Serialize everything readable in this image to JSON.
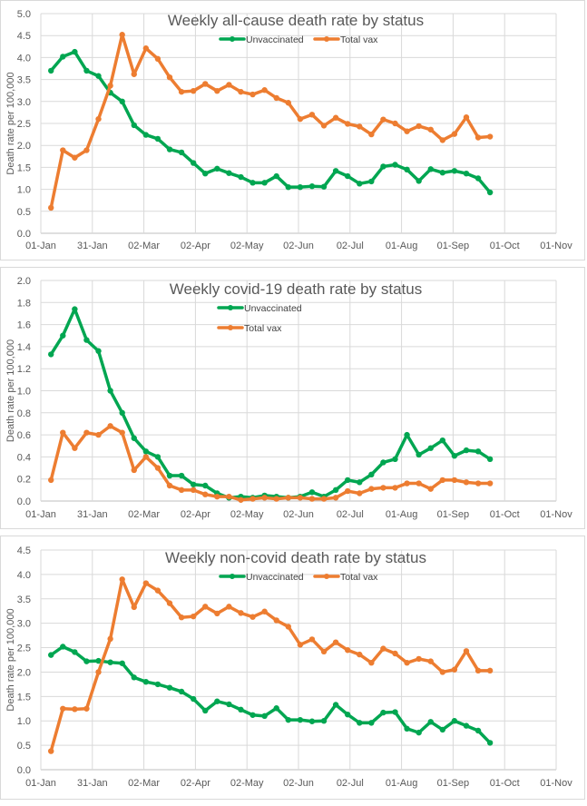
{
  "colors": {
    "unvaccinated": "#00A651",
    "total_vax": "#ED7D31"
  },
  "chart_data": [
    {
      "type": "line",
      "title": "Weekly all-cause death rate by status",
      "xlabel": "",
      "ylabel": "Death rate per 100,000",
      "ylim": [
        0,
        5.0
      ],
      "ytick_step": 0.5,
      "ytick_labels": [
        "0.0",
        "0.5",
        "1.0",
        "1.5",
        "2.0",
        "2.5",
        "3.0",
        "3.5",
        "4.0",
        "4.5",
        "5.0"
      ],
      "xtick_labels": [
        "01-Jan",
        "31-Jan",
        "02-Mar",
        "02-Apr",
        "02-May",
        "02-Jun",
        "02-Jul",
        "01-Aug",
        "01-Sep",
        "01-Oct",
        "01-Nov"
      ],
      "x_start_day": 6,
      "x_step_days": 7,
      "grid": true,
      "legend": {
        "placement": "top-center",
        "layout": "horizontal",
        "entries": [
          "Unvaccinated",
          "Total vax"
        ]
      },
      "series": [
        {
          "name": "Unvaccinated",
          "color_key": "unvaccinated",
          "values": [
            3.7,
            4.02,
            4.13,
            3.7,
            3.58,
            3.2,
            3.0,
            2.46,
            2.24,
            2.15,
            1.91,
            1.84,
            1.6,
            1.36,
            1.47,
            1.37,
            1.28,
            1.15,
            1.15,
            1.3,
            1.05,
            1.05,
            1.07,
            1.06,
            1.42,
            1.3,
            1.13,
            1.18,
            1.52,
            1.56,
            1.45,
            1.19,
            1.46,
            1.38,
            1.42,
            1.36,
            1.25,
            0.93
          ]
        },
        {
          "name": "Total vax",
          "color_key": "total_vax",
          "values": [
            0.58,
            1.89,
            1.72,
            1.89,
            2.6,
            3.36,
            4.52,
            3.62,
            4.21,
            3.97,
            3.55,
            3.22,
            3.24,
            3.4,
            3.24,
            3.38,
            3.22,
            3.16,
            3.26,
            3.08,
            2.97,
            2.6,
            2.7,
            2.45,
            2.63,
            2.49,
            2.43,
            2.25,
            2.59,
            2.5,
            2.32,
            2.44,
            2.36,
            2.12,
            2.26,
            2.64,
            2.18,
            2.2
          ]
        }
      ]
    },
    {
      "type": "line",
      "title": "Weekly covid-19 death rate by status",
      "xlabel": "",
      "ylabel": "Death rate per 100,000",
      "ylim": [
        0,
        2.0
      ],
      "ytick_step": 0.2,
      "ytick_labels": [
        "0.0",
        "0.2",
        "0.4",
        "0.6",
        "0.8",
        "1.0",
        "1.2",
        "1.4",
        "1.6",
        "1.8",
        "2.0"
      ],
      "xtick_labels": [
        "01-Jan",
        "31-Jan",
        "02-Mar",
        "02-Apr",
        "02-May",
        "02-Jun",
        "02-Jul",
        "01-Aug",
        "01-Sep",
        "01-Oct",
        "01-Nov"
      ],
      "x_start_day": 6,
      "x_step_days": 7,
      "grid": true,
      "legend": {
        "placement": "top-center",
        "layout": "vertical",
        "entries": [
          "Unvaccinated",
          "Total vax"
        ]
      },
      "series": [
        {
          "name": "Unvaccinated",
          "color_key": "unvaccinated",
          "values": [
            1.33,
            1.5,
            1.74,
            1.46,
            1.36,
            1.0,
            0.8,
            0.57,
            0.45,
            0.4,
            0.23,
            0.23,
            0.15,
            0.14,
            0.07,
            0.03,
            0.04,
            0.03,
            0.05,
            0.04,
            0.03,
            0.04,
            0.08,
            0.04,
            0.1,
            0.19,
            0.17,
            0.24,
            0.35,
            0.38,
            0.6,
            0.42,
            0.48,
            0.55,
            0.41,
            0.46,
            0.45,
            0.38
          ]
        },
        {
          "name": "Total vax",
          "color_key": "total_vax",
          "values": [
            0.19,
            0.62,
            0.48,
            0.62,
            0.6,
            0.68,
            0.62,
            0.28,
            0.4,
            0.3,
            0.14,
            0.1,
            0.1,
            0.06,
            0.04,
            0.04,
            0.01,
            0.02,
            0.03,
            0.02,
            0.03,
            0.03,
            0.02,
            0.02,
            0.03,
            0.09,
            0.07,
            0.11,
            0.12,
            0.12,
            0.16,
            0.16,
            0.11,
            0.19,
            0.19,
            0.17,
            0.16,
            0.16
          ]
        }
      ]
    },
    {
      "type": "line",
      "title": "Weekly non-covid death rate by status",
      "xlabel": "",
      "ylabel": "Death rate per 100,000",
      "ylim": [
        0,
        4.5
      ],
      "ytick_step": 0.5,
      "ytick_labels": [
        "0.0",
        "0.5",
        "1.0",
        "1.5",
        "2.0",
        "2.5",
        "3.0",
        "3.5",
        "4.0",
        "4.5"
      ],
      "xtick_labels": [
        "01-Jan",
        "31-Jan",
        "02-Mar",
        "02-Apr",
        "02-May",
        "02-Jun",
        "02-Jul",
        "01-Aug",
        "01-Sep",
        "01-Oct",
        "01-Nov"
      ],
      "x_start_day": 6,
      "x_step_days": 7,
      "grid": true,
      "legend": {
        "placement": "top-center",
        "layout": "horizontal",
        "entries": [
          "Unvaccinated",
          "Total vax"
        ]
      },
      "series": [
        {
          "name": "Unvaccinated",
          "color_key": "unvaccinated",
          "values": [
            2.35,
            2.52,
            2.41,
            2.22,
            2.23,
            2.2,
            2.18,
            1.89,
            1.8,
            1.75,
            1.68,
            1.6,
            1.45,
            1.21,
            1.4,
            1.34,
            1.23,
            1.12,
            1.1,
            1.26,
            1.02,
            1.02,
            0.99,
            1.0,
            1.33,
            1.13,
            0.96,
            0.96,
            1.17,
            1.18,
            0.84,
            0.76,
            0.98,
            0.82,
            1.0,
            0.9,
            0.8,
            0.55
          ]
        },
        {
          "name": "Total vax",
          "color_key": "total_vax",
          "values": [
            0.38,
            1.25,
            1.24,
            1.25,
            2.0,
            2.68,
            3.9,
            3.33,
            3.82,
            3.67,
            3.41,
            3.12,
            3.14,
            3.34,
            3.2,
            3.34,
            3.21,
            3.13,
            3.24,
            3.06,
            2.93,
            2.56,
            2.67,
            2.42,
            2.61,
            2.45,
            2.36,
            2.19,
            2.48,
            2.38,
            2.19,
            2.27,
            2.22,
            2.0,
            2.05,
            2.43,
            2.03,
            2.03
          ]
        }
      ]
    }
  ]
}
